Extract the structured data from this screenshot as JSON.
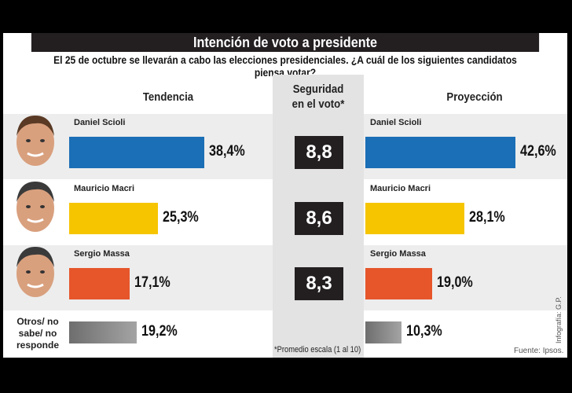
{
  "title": "Intención de voto a presidente",
  "subtitle": "El 25 de octubre se llevarán a cabo las elecciones presidenciales. ¿A cuál de los siguientes candidatos piensa votar?",
  "headers": {
    "tendencia": "Tendencia",
    "seguridad": "Seguridad en el voto*",
    "proyeccion": "Proyección"
  },
  "footnote": "*Promedio escala (1 al 10)",
  "source": "Fuente: Ipsos.",
  "credit": "Infografía: G.P.",
  "chart_data": {
    "type": "bar",
    "categories": [
      "Daniel Scioli",
      "Mauricio Macri",
      "Sergio Massa",
      "Otros/ no sabe/ no responde"
    ],
    "series": [
      {
        "name": "Tendencia",
        "values": [
          38.4,
          25.3,
          17.1,
          19.2
        ],
        "labels": [
          "38,4%",
          "25,3%",
          "17,1%",
          "19,2%"
        ]
      },
      {
        "name": "Proyección",
        "values": [
          42.6,
          28.1,
          19.0,
          10.3
        ],
        "labels": [
          "42,6%",
          "28,1%",
          "19,0%",
          "10,3%"
        ]
      }
    ],
    "seguridad": [
      "8,8",
      "8,6",
      "8,3"
    ],
    "colors": [
      "#1b6fb6",
      "#f6c500",
      "#e6562a",
      "#8c8c8c"
    ]
  }
}
